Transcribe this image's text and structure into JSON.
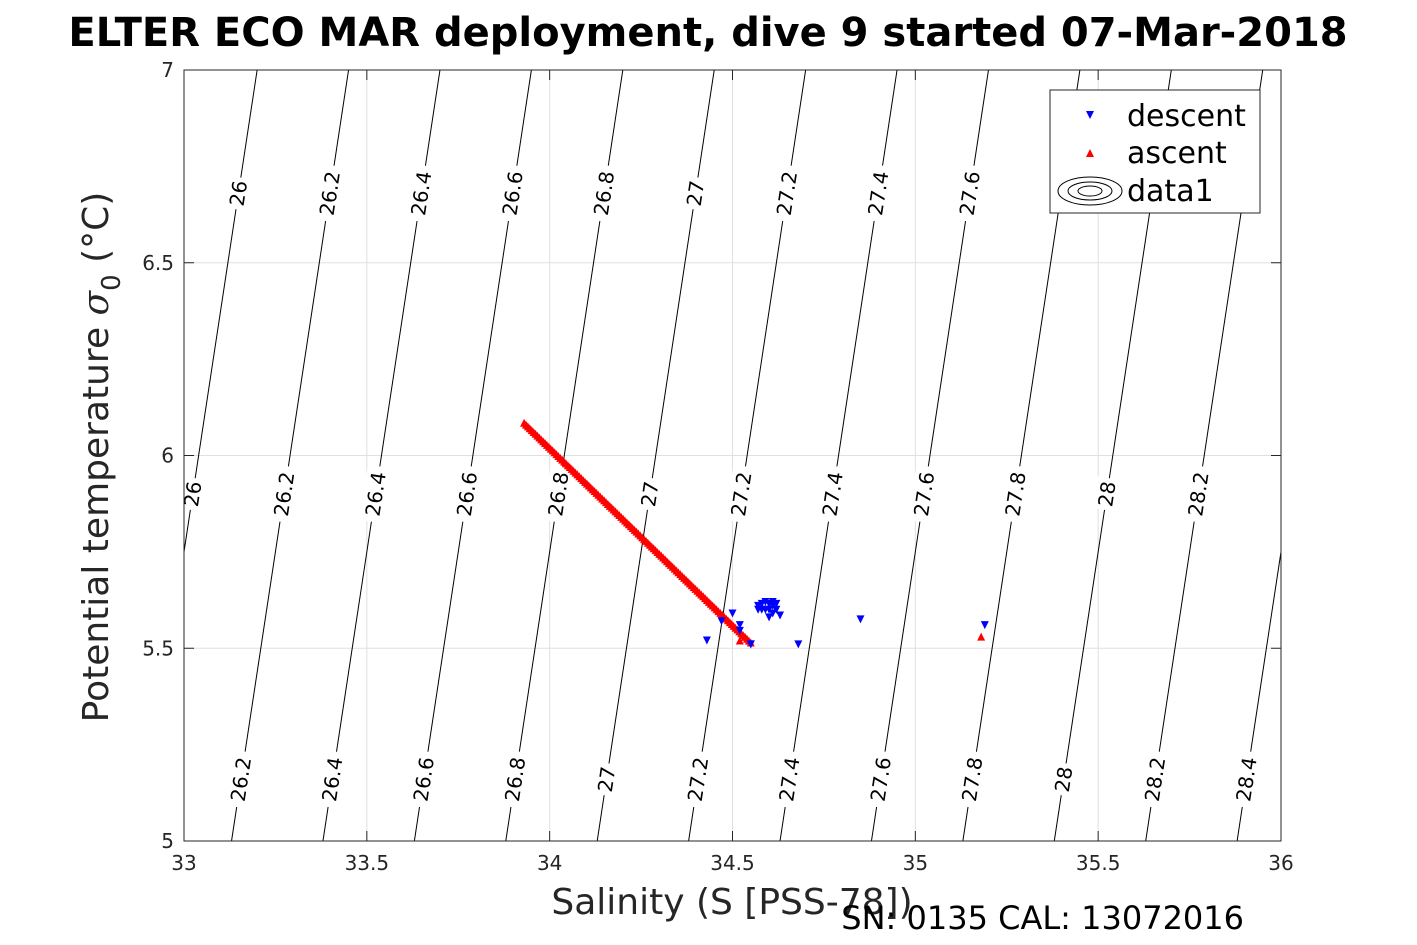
{
  "chart_data": {
    "type": "scatter",
    "title": "ELTER ECO MAR deployment, dive 9 started 07-Mar-2018",
    "xlabel": "Salinity (S [PSS-78])",
    "ylabel_main": "Potential temperature ",
    "ylabel_sigma": "σ",
    "ylabel_sub": "0",
    "ylabel_unit": " (°C)",
    "xlim": [
      33,
      36
    ],
    "ylim": [
      5,
      7
    ],
    "xticks": [
      33,
      33.5,
      34,
      34.5,
      35,
      35.5,
      36
    ],
    "xtick_labels": [
      "33",
      "33.5",
      "34",
      "34.5",
      "35",
      "35.5",
      "36"
    ],
    "yticks": [
      5,
      5.5,
      6,
      6.5,
      7
    ],
    "ytick_labels": [
      "5",
      "5.5",
      "6",
      "6.5",
      "7"
    ],
    "grid": true,
    "legend_position": "top-right",
    "colors": {
      "descent": "#0000ff",
      "ascent": "#ff0000",
      "contour": "#000000",
      "grid": "#e0e0e0"
    },
    "series": [
      {
        "name": "descent",
        "marker": "triangle-down",
        "color": "#0000ff",
        "x": [
          34.43,
          34.47,
          34.5,
          34.52,
          34.52,
          34.55,
          34.55,
          34.57,
          34.57,
          34.58,
          34.58,
          34.59,
          34.59,
          34.6,
          34.6,
          34.61,
          34.61,
          34.62,
          34.62,
          34.6,
          34.61,
          34.63,
          34.68,
          34.85,
          35.19
        ],
        "y": [
          5.52,
          5.57,
          5.59,
          5.56,
          5.545,
          5.51,
          5.51,
          5.6,
          5.61,
          5.6,
          5.615,
          5.6,
          5.62,
          5.615,
          5.6,
          5.62,
          5.61,
          5.615,
          5.6,
          5.58,
          5.59,
          5.585,
          5.51,
          5.575,
          5.56
        ]
      },
      {
        "name": "ascent",
        "marker": "triangle-up",
        "color": "#ff0000",
        "x_start": 33.93,
        "y_start": 6.085,
        "x_end": 34.55,
        "y_end": 5.515,
        "count": 120,
        "extra_x": [
          34.52,
          35.18
        ],
        "extra_y": [
          5.52,
          5.53
        ]
      },
      {
        "name": "data1",
        "marker": "contour"
      }
    ],
    "contour_levels": [
      "26",
      "26.2",
      "26.4",
      "26.6",
      "26.8",
      "27",
      "27.2",
      "27.4",
      "27.6",
      "27.8",
      "28",
      "28.2",
      "28.4"
    ],
    "contour_s_at_bottom": [
      32.88,
      33.13,
      33.38,
      33.63,
      33.88,
      34.13,
      34.38,
      34.63,
      34.88,
      35.13,
      35.38,
      35.63,
      35.88
    ],
    "contour_s_at_top": [
      33.2,
      33.45,
      33.7,
      33.95,
      34.2,
      34.45,
      34.7,
      34.95,
      35.2,
      35.45,
      35.7,
      35.95,
      36.2
    ],
    "contour_label_rows": [
      {
        "y": 6.68,
        "levels": [
          "26",
          "26.2",
          "26.4",
          "26.6",
          "26.8",
          "27",
          "27.2",
          "27.4",
          "27.6"
        ]
      },
      {
        "y": 5.9,
        "levels": [
          "26",
          "26.2",
          "26.4",
          "26.6",
          "26.8",
          "27",
          "27.2",
          "27.4",
          "27.6",
          "27.8",
          "28",
          "28.2"
        ]
      },
      {
        "y": 5.16,
        "levels": [
          "26.2",
          "26.4",
          "26.6",
          "26.8",
          "27",
          "27.2",
          "27.4",
          "27.6",
          "27.8",
          "28",
          "28.2",
          "28.4"
        ]
      }
    ],
    "footer": "SN: 0135  CAL: 13072016"
  }
}
